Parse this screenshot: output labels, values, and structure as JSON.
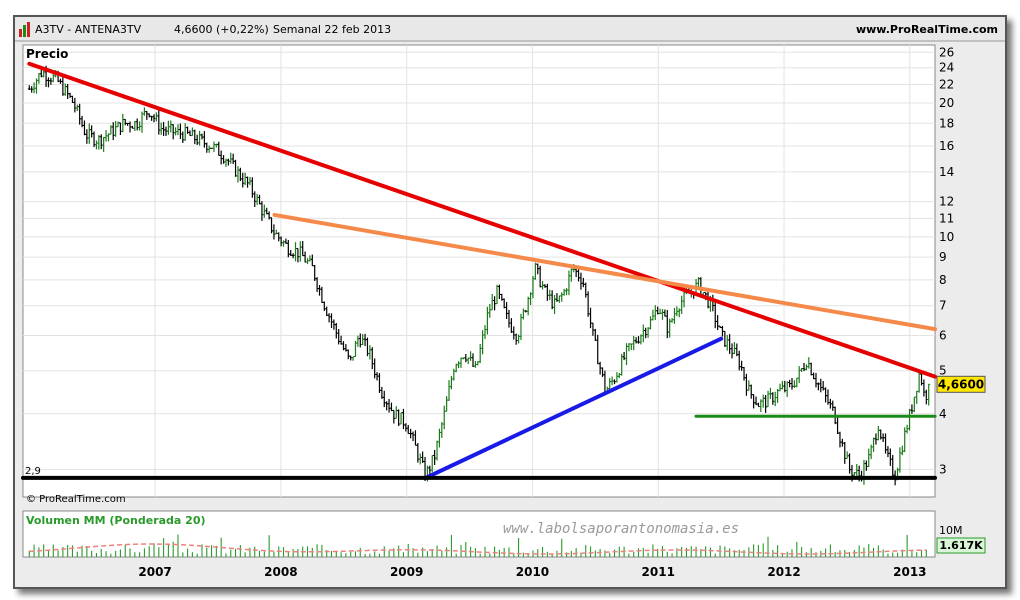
{
  "header": {
    "symbol": "A3TV - ANTENA3TV",
    "price_change": "4,6600 (+0,22%)",
    "period_date": "Semanal  22 feb 2013",
    "site": "www.ProRealTime.com"
  },
  "panel_label": "Precio",
  "copyright": "© ProRealTime.com",
  "watermark": "www.labolsaporantonomasia.es",
  "volume": {
    "label": "Volumen MM (Ponderada 20)",
    "scale_label": "10M",
    "last_value": "1.617K"
  },
  "colors": {
    "up_bar": "#1a7a1a",
    "down_bar": "#000000",
    "main_trend": "#e60000",
    "upper_trend": "#f5894a",
    "support_trend": "#1a1ae6",
    "resistance": "#1a8c1a",
    "floor": "#000000",
    "price_badge": "#ffe800",
    "volume_ma": "#f08080",
    "volume_bar": "#2a9a2a"
  },
  "chart_data": {
    "type": "line",
    "title": "A3TV - ANTENA3TV",
    "subtitle": "Semanal 22 feb 2013",
    "last_price": 4.66,
    "last_price_label": "4,6600",
    "y_scale": "log",
    "ylim": [
      2.6,
      27
    ],
    "y_ticks": [
      26,
      24,
      22,
      20,
      18,
      16,
      14,
      12,
      11,
      10,
      9,
      8,
      7,
      6,
      5,
      4,
      3
    ],
    "x_ticks": [
      "2007",
      "2008",
      "2009",
      "2010",
      "2011",
      "2012",
      "2013"
    ],
    "xlim": [
      2005.95,
      2013.2
    ],
    "grid": true,
    "series": [
      {
        "points": [
          [
            2006.0,
            21.5
          ],
          [
            2006.1,
            23.5
          ],
          [
            2006.22,
            22.5
          ],
          [
            2006.35,
            20.0
          ],
          [
            2006.45,
            17.0
          ],
          [
            2006.55,
            16.5
          ],
          [
            2006.65,
            17.2
          ],
          [
            2006.75,
            18.0
          ],
          [
            2006.85,
            18.0
          ],
          [
            2006.95,
            19.3
          ],
          [
            2007.05,
            17.5
          ],
          [
            2007.15,
            17.2
          ],
          [
            2007.25,
            17.0
          ],
          [
            2007.35,
            16.5
          ],
          [
            2007.45,
            16.0
          ],
          [
            2007.55,
            15.2
          ],
          [
            2007.65,
            14.0
          ],
          [
            2007.75,
            13.0
          ],
          [
            2007.85,
            11.5
          ],
          [
            2007.95,
            10.2
          ],
          [
            2008.05,
            9.5
          ],
          [
            2008.15,
            9.2
          ],
          [
            2008.25,
            8.5
          ],
          [
            2008.35,
            7.0
          ],
          [
            2008.45,
            6.0
          ],
          [
            2008.55,
            5.2
          ],
          [
            2008.62,
            6.0
          ],
          [
            2008.7,
            5.5
          ],
          [
            2008.8,
            4.5
          ],
          [
            2008.9,
            4.0
          ],
          [
            2009.0,
            3.8
          ],
          [
            2009.08,
            3.3
          ],
          [
            2009.15,
            2.9
          ],
          [
            2009.22,
            3.2
          ],
          [
            2009.3,
            4.0
          ],
          [
            2009.38,
            5.2
          ],
          [
            2009.46,
            5.5
          ],
          [
            2009.55,
            5.0
          ],
          [
            2009.65,
            6.8
          ],
          [
            2009.72,
            7.5
          ],
          [
            2009.8,
            6.5
          ],
          [
            2009.88,
            6.0
          ],
          [
            2009.96,
            7.2
          ],
          [
            2010.02,
            8.5
          ],
          [
            2010.1,
            7.5
          ],
          [
            2010.18,
            7.0
          ],
          [
            2010.25,
            7.5
          ],
          [
            2010.32,
            8.5
          ],
          [
            2010.4,
            8.0
          ],
          [
            2010.48,
            6.0
          ],
          [
            2010.58,
            4.5
          ],
          [
            2010.65,
            4.8
          ],
          [
            2010.75,
            5.5
          ],
          [
            2010.85,
            6.0
          ],
          [
            2010.95,
            6.5
          ],
          [
            2011.0,
            7.0
          ],
          [
            2011.08,
            6.2
          ],
          [
            2011.15,
            7.0
          ],
          [
            2011.25,
            7.5
          ],
          [
            2011.32,
            7.8
          ],
          [
            2011.42,
            7.0
          ],
          [
            2011.5,
            6.0
          ],
          [
            2011.58,
            5.6
          ],
          [
            2011.65,
            5.2
          ],
          [
            2011.72,
            4.5
          ],
          [
            2011.8,
            4.2
          ],
          [
            2011.88,
            4.3
          ],
          [
            2011.96,
            4.5
          ],
          [
            2012.05,
            4.6
          ],
          [
            2012.12,
            4.9
          ],
          [
            2012.18,
            5.3
          ],
          [
            2012.25,
            4.8
          ],
          [
            2012.32,
            4.4
          ],
          [
            2012.4,
            4.0
          ],
          [
            2012.45,
            3.5
          ],
          [
            2012.52,
            3.0
          ],
          [
            2012.6,
            2.9
          ],
          [
            2012.68,
            3.2
          ],
          [
            2012.75,
            3.8
          ],
          [
            2012.8,
            3.3
          ],
          [
            2012.88,
            2.9
          ],
          [
            2012.95,
            3.5
          ],
          [
            2013.02,
            4.2
          ],
          [
            2013.08,
            5.0
          ],
          [
            2013.12,
            4.3
          ],
          [
            2013.15,
            4.66
          ]
        ]
      }
    ],
    "trendlines": [
      {
        "from": [
          2006.0,
          24.5
        ],
        "to": [
          2013.2,
          4.85
        ]
      },
      {
        "from": [
          2007.95,
          11.2
        ],
        "to": [
          2013.2,
          6.2
        ]
      },
      {
        "from": [
          2009.15,
          2.87
        ],
        "to": [
          2011.5,
          5.9
        ]
      },
      {
        "from": [
          2011.3,
          3.95
        ],
        "to": [
          2013.2,
          3.95
        ]
      },
      {
        "from": [
          2005.95,
          2.87
        ],
        "to": [
          2013.2,
          2.87
        ],
        "label": "2,9"
      }
    ]
  }
}
